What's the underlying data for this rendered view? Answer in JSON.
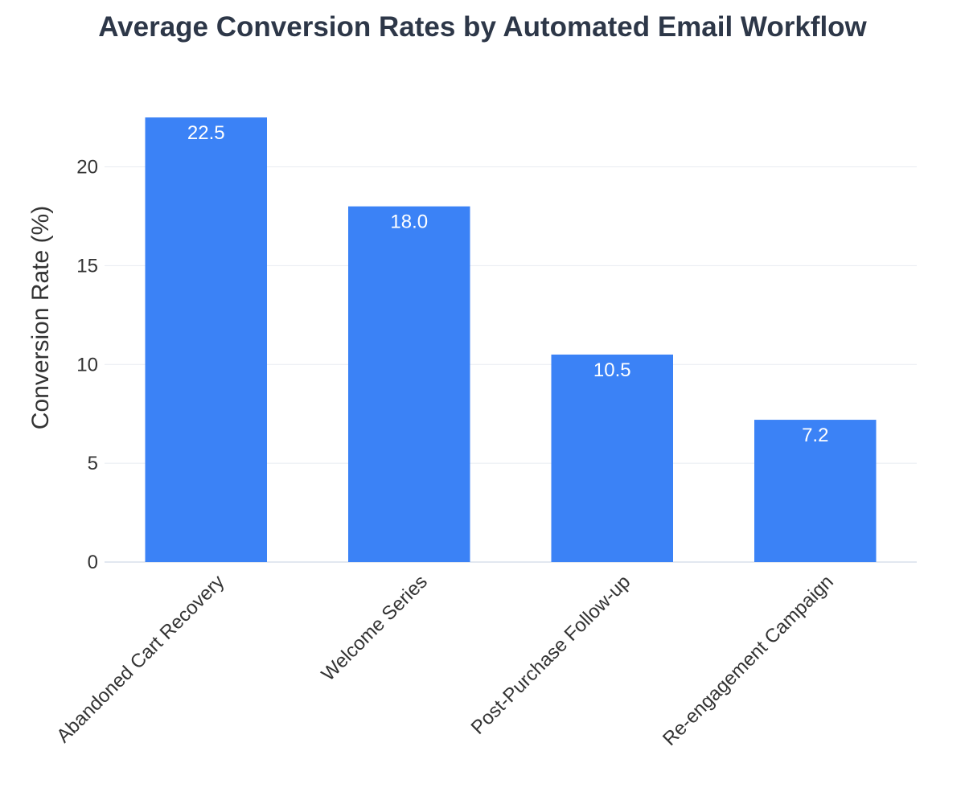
{
  "chart_data": {
    "type": "bar",
    "title": "Average Conversion Rates by Automated Email Workflow",
    "xlabel": "",
    "ylabel": "Conversion Rate (%)",
    "categories": [
      "Abandoned Cart Recovery",
      "Welcome Series",
      "Post-Purchase Follow-up",
      "Re-engagement Campaign"
    ],
    "values": [
      22.5,
      18.0,
      10.5,
      7.2
    ],
    "value_labels": [
      "22.5",
      "18.0",
      "10.5",
      "7.2"
    ],
    "ylim": [
      0,
      24.7
    ],
    "yticks": [
      0,
      5,
      10,
      15,
      20
    ],
    "ytick_labels": [
      "0",
      "5",
      "10",
      "15",
      "20"
    ],
    "grid": "horizontal",
    "legend": "none",
    "x_tick_rotation": -45,
    "colors": {
      "bar": "#3b82f6",
      "title": "#2d3748",
      "text": "#333333",
      "grid": "#e8ecf1",
      "axis_line": "#e2e8f0",
      "bar_label": "#ffffff"
    }
  }
}
